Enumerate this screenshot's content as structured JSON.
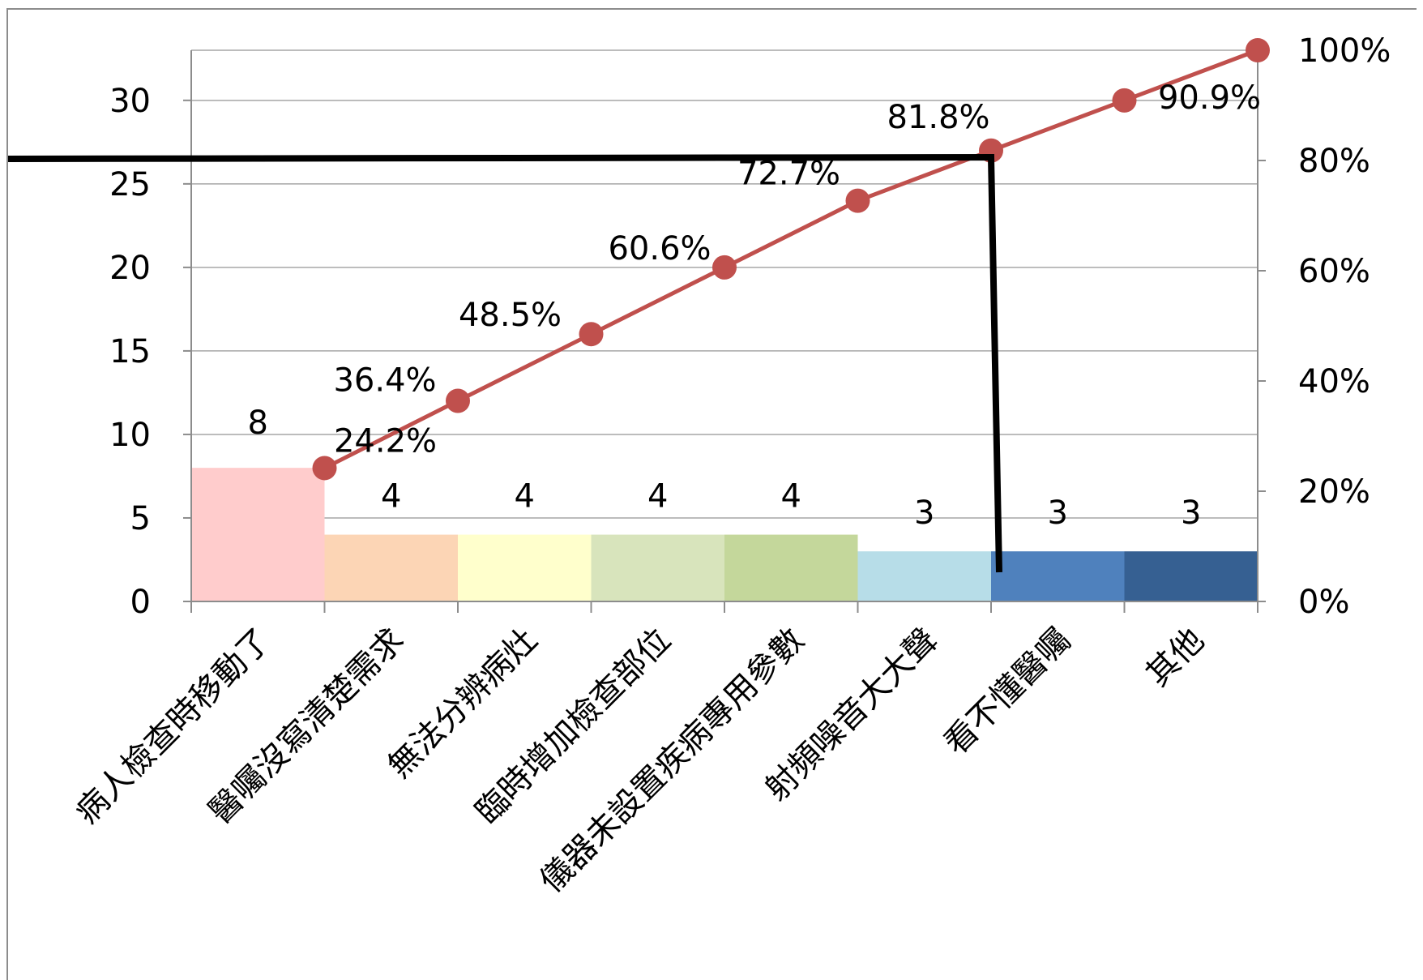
{
  "chart_data": {
    "type": "bar",
    "combo": "bar+line (pareto)",
    "categories": [
      "病人檢查時移動了",
      "醫囑沒寫清楚需求",
      "無法分辨病灶",
      "臨時增加檢查部位",
      "儀器未設置疾病專用參數",
      "射頻噪音大大聲",
      "看不懂醫囑",
      "其他"
    ],
    "series": [
      {
        "type": "bar",
        "values": [
          8,
          4,
          4,
          4,
          4,
          3,
          3,
          3
        ],
        "colors": [
          "#ffcccc",
          "#fcd5b5",
          "#ffffcc",
          "#d8e4bc",
          "#c4d79b",
          "#b7dde8",
          "#4f81bd",
          "#366092"
        ],
        "value_labels": [
          "8",
          "4",
          "4",
          "4",
          "4",
          "3",
          "3",
          "3"
        ]
      },
      {
        "type": "line",
        "axis": "right",
        "values": [
          24.2,
          36.4,
          48.5,
          60.6,
          72.7,
          81.8,
          90.9,
          100
        ],
        "labels": [
          "24.2%",
          "36.4%",
          "48.5%",
          "60.6%",
          "72.7%",
          "81.8%",
          "90.9%",
          ""
        ],
        "color": "#c0504d"
      }
    ],
    "left_axis": {
      "ylim": [
        0,
        33
      ],
      "ticks": [
        "0",
        "5",
        "10",
        "15",
        "20",
        "25",
        "30"
      ],
      "tick_values": [
        0,
        5,
        10,
        15,
        20,
        25,
        30
      ]
    },
    "right_axis": {
      "ylim": [
        0,
        100
      ],
      "ticks": [
        "0%",
        "20%",
        "40%",
        "60%",
        "80%",
        "100%"
      ],
      "tick_values": [
        0,
        20,
        40,
        60,
        80,
        100
      ]
    },
    "grid": true,
    "legend": "none",
    "reference_line": {
      "level_percent": 80,
      "category_index": 6,
      "color": "#000000"
    },
    "gridline_color": "#a6a6a6"
  }
}
